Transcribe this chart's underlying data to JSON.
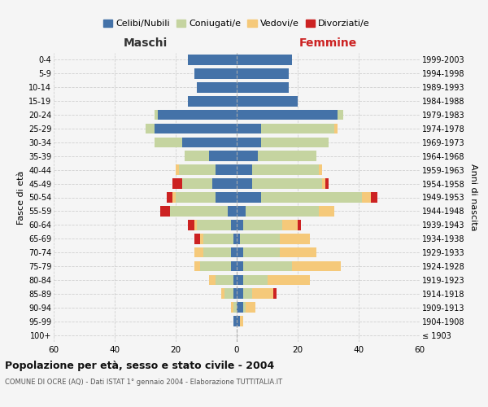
{
  "age_groups": [
    "100+",
    "95-99",
    "90-94",
    "85-89",
    "80-84",
    "75-79",
    "70-74",
    "65-69",
    "60-64",
    "55-59",
    "50-54",
    "45-49",
    "40-44",
    "35-39",
    "30-34",
    "25-29",
    "20-24",
    "15-19",
    "10-14",
    "5-9",
    "0-4"
  ],
  "birth_years": [
    "≤ 1903",
    "1904-1908",
    "1909-1913",
    "1914-1918",
    "1919-1923",
    "1924-1928",
    "1929-1933",
    "1934-1938",
    "1939-1943",
    "1944-1948",
    "1949-1953",
    "1954-1958",
    "1959-1963",
    "1964-1968",
    "1969-1973",
    "1974-1978",
    "1979-1983",
    "1984-1988",
    "1989-1993",
    "1994-1998",
    "1999-2003"
  ],
  "male_celibi": [
    0,
    1,
    0,
    1,
    1,
    2,
    2,
    1,
    2,
    3,
    7,
    8,
    7,
    9,
    18,
    27,
    26,
    16,
    13,
    14,
    16
  ],
  "male_coniugati": [
    0,
    0,
    1,
    3,
    6,
    10,
    9,
    10,
    11,
    19,
    13,
    10,
    12,
    8,
    9,
    3,
    1,
    0,
    0,
    0,
    0
  ],
  "male_vedovi": [
    0,
    0,
    1,
    1,
    2,
    2,
    3,
    1,
    1,
    0,
    1,
    0,
    1,
    0,
    0,
    0,
    0,
    0,
    0,
    0,
    0
  ],
  "male_divorziati": [
    0,
    0,
    0,
    0,
    0,
    0,
    0,
    2,
    2,
    3,
    2,
    3,
    0,
    0,
    0,
    0,
    0,
    0,
    0,
    0,
    0
  ],
  "female_celibi": [
    0,
    1,
    2,
    2,
    2,
    2,
    2,
    1,
    2,
    3,
    8,
    5,
    5,
    7,
    8,
    8,
    33,
    20,
    17,
    17,
    18
  ],
  "female_coniugati": [
    0,
    0,
    1,
    3,
    8,
    16,
    12,
    13,
    13,
    24,
    33,
    23,
    22,
    19,
    22,
    24,
    2,
    0,
    0,
    0,
    0
  ],
  "female_vedovi": [
    0,
    1,
    3,
    7,
    14,
    16,
    12,
    10,
    5,
    5,
    3,
    1,
    1,
    0,
    0,
    1,
    0,
    0,
    0,
    0,
    0
  ],
  "female_divorziati": [
    0,
    0,
    0,
    1,
    0,
    0,
    0,
    0,
    1,
    0,
    2,
    1,
    0,
    0,
    0,
    0,
    0,
    0,
    0,
    0,
    0
  ],
  "color_celibi": "#4472a8",
  "color_coniugati": "#c5d4a0",
  "color_vedovi": "#f5c97a",
  "color_divorziati": "#cc2222",
  "title": "Popolazione per età, sesso e stato civile - 2004",
  "subtitle": "COMUNE DI OCRE (AQ) - Dati ISTAT 1° gennaio 2004 - Elaborazione TUTTITALIA.IT",
  "xlabel_left": "Maschi",
  "xlabel_right": "Femmine",
  "ylabel_left": "Fasce di età",
  "ylabel_right": "Anni di nascita",
  "xlim": 60,
  "bg_color": "#f5f5f5",
  "grid_color": "#cccccc",
  "bar_height": 0.75
}
